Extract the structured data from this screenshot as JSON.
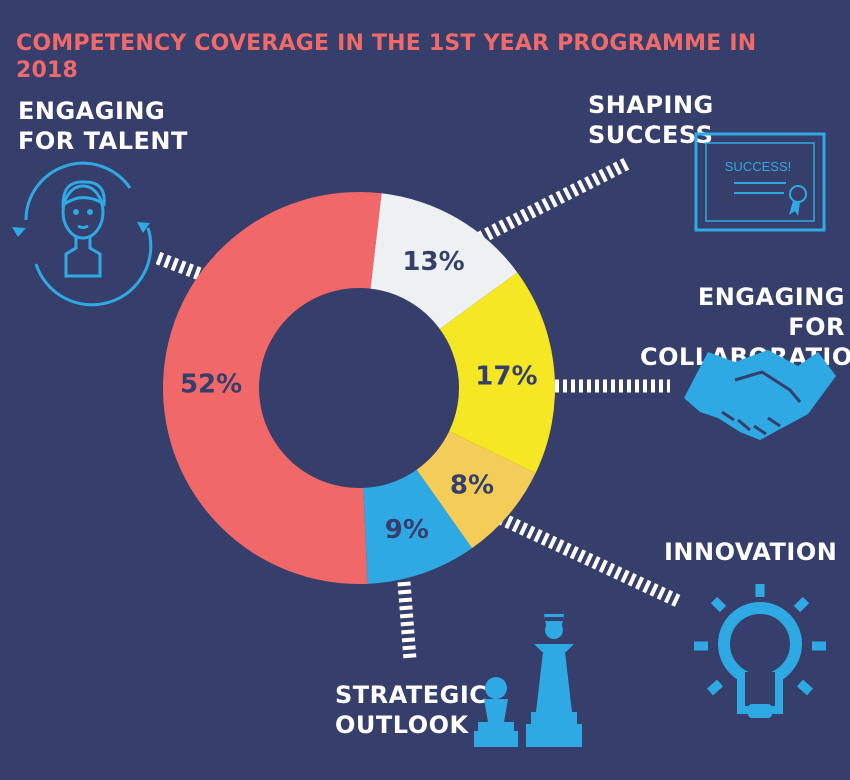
{
  "title": "COMPETENCY COVERAGE IN THE 1ST YEAR PROGRAMME IN 2018",
  "colors": {
    "background": "#363e6b",
    "title": "#f06a6a",
    "icon": "#2fa9e3",
    "label_text": "#ffffff",
    "value_text": "#363e6b"
  },
  "categories": [
    {
      "label": "ENGAGING FOR TALENT",
      "icon": "person-refresh-icon"
    },
    {
      "label": "SHAPING SUCCESS",
      "icon": "certificate-icon",
      "icon_text": "SUCCESS!"
    },
    {
      "label": "ENGAGING FOR COLLABORATION",
      "icon": "handshake-icon"
    },
    {
      "label": "INNOVATION",
      "icon": "lightbulb-icon"
    },
    {
      "label": "STRATEGIC OUTLOOK",
      "icon": "chess-pieces-icon"
    }
  ],
  "chart_data": {
    "type": "pie",
    "title": "COMPETENCY COVERAGE IN THE 1ST YEAR PROGRAMME IN 2018",
    "donut": true,
    "slices": [
      {
        "value": 13,
        "label": "13%",
        "color": "#edf1f1"
      },
      {
        "value": 17,
        "label": "17%",
        "color": "#f6e724"
      },
      {
        "value": 8,
        "label": "8%",
        "color": "#f4cd58"
      },
      {
        "value": 9,
        "label": "9%",
        "color": "#2fa9e3"
      },
      {
        "value": 52,
        "label": "52%",
        "color": "#f06868"
      }
    ]
  }
}
